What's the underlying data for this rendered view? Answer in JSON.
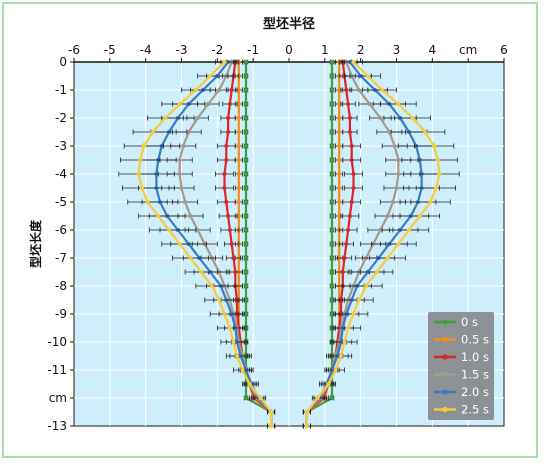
{
  "chart_data": {
    "type": "line",
    "title": "型坯半径",
    "xlabel": "cm",
    "ylabel": "型坯长度",
    "xlim": [
      -6,
      6
    ],
    "ylim": [
      -13,
      0
    ],
    "x_ticks": [
      "-6",
      "-5",
      "-4",
      "-3",
      "-2",
      "-1",
      "0",
      "1",
      "2",
      "3",
      "4",
      "cm",
      "6"
    ],
    "y_ticks": [
      "0",
      "-1",
      "-2",
      "-3",
      "-4",
      "-5",
      "-6",
      "-7",
      "-8",
      "-9",
      "-10",
      "-11",
      "cm",
      "-13"
    ],
    "y": [
      0,
      -0.5,
      -1,
      -1.5,
      -2,
      -2.5,
      -3,
      -3.5,
      -4,
      -4.5,
      -5,
      -5.5,
      -6,
      -6.5,
      -7,
      -7.5,
      -8,
      -8.5,
      -9,
      -9.5,
      -10,
      -10.5,
      -11,
      -11.5,
      -12,
      -12.5,
      -13
    ],
    "grid": true,
    "legend_position": "bottom-right",
    "colors": {
      "plot_background": "#cdeefa",
      "legend_background": "#8c9196",
      "border": "#a9dfae"
    },
    "series": [
      {
        "name": "0 s",
        "color": "#3f9f3f",
        "right": [
          1.2,
          1.2,
          1.2,
          1.2,
          1.2,
          1.2,
          1.2,
          1.2,
          1.2,
          1.2,
          1.2,
          1.2,
          1.2,
          1.2,
          1.2,
          1.2,
          1.2,
          1.2,
          1.2,
          1.2,
          1.2,
          1.2,
          1.2,
          1.2,
          1.2,
          0.5,
          0.5
        ],
        "left": [
          -1.2,
          -1.2,
          -1.2,
          -1.2,
          -1.2,
          -1.2,
          -1.2,
          -1.2,
          -1.2,
          -1.2,
          -1.2,
          -1.2,
          -1.2,
          -1.2,
          -1.2,
          -1.2,
          -1.2,
          -1.2,
          -1.2,
          -1.2,
          -1.2,
          -1.2,
          -1.2,
          -1.2,
          -1.2,
          -0.5,
          -0.5
        ],
        "err": [
          0.05,
          0.05,
          0.05,
          0.05,
          0.05,
          0.05,
          0.05,
          0.05,
          0.05,
          0.05,
          0.05,
          0.05,
          0.05,
          0.05,
          0.05,
          0.05,
          0.05,
          0.05,
          0.05,
          0.05,
          0.05,
          0.05,
          0.05,
          0.05,
          0.05,
          0.1,
          0.1
        ]
      },
      {
        "name": "0.5 s",
        "color": "#f28c1e",
        "right": [
          1.4,
          1.4,
          1.4,
          1.4,
          1.4,
          1.4,
          1.4,
          1.4,
          1.4,
          1.4,
          1.4,
          1.4,
          1.4,
          1.4,
          1.4,
          1.4,
          1.4,
          1.4,
          1.4,
          1.4,
          1.35,
          1.3,
          1.2,
          1.1,
          1.0,
          0.5,
          0.5
        ],
        "left": [
          -1.4,
          -1.4,
          -1.4,
          -1.4,
          -1.4,
          -1.4,
          -1.4,
          -1.4,
          -1.4,
          -1.4,
          -1.4,
          -1.4,
          -1.4,
          -1.4,
          -1.4,
          -1.4,
          -1.4,
          -1.4,
          -1.4,
          -1.4,
          -1.35,
          -1.3,
          -1.2,
          -1.1,
          -1.0,
          -0.5,
          -0.5
        ],
        "err": [
          0.1,
          0.1,
          0.1,
          0.1,
          0.1,
          0.1,
          0.1,
          0.1,
          0.1,
          0.1,
          0.1,
          0.1,
          0.1,
          0.1,
          0.1,
          0.1,
          0.1,
          0.1,
          0.1,
          0.1,
          0.1,
          0.1,
          0.1,
          0.1,
          0.1,
          0.1,
          0.1
        ]
      },
      {
        "name": "1.0 s",
        "color": "#d9262b",
        "right": [
          1.5,
          1.55,
          1.6,
          1.65,
          1.7,
          1.7,
          1.75,
          1.75,
          1.8,
          1.8,
          1.75,
          1.7,
          1.65,
          1.6,
          1.55,
          1.5,
          1.5,
          1.45,
          1.45,
          1.4,
          1.35,
          1.3,
          1.2,
          1.1,
          0.95,
          0.5,
          0.5
        ],
        "left": [
          -1.5,
          -1.55,
          -1.6,
          -1.65,
          -1.7,
          -1.7,
          -1.75,
          -1.75,
          -1.8,
          -1.8,
          -1.75,
          -1.7,
          -1.65,
          -1.6,
          -1.55,
          -1.5,
          -1.5,
          -1.45,
          -1.45,
          -1.4,
          -1.35,
          -1.3,
          -1.2,
          -1.1,
          -0.95,
          -0.5,
          -0.5
        ],
        "err": [
          0.1,
          0.15,
          0.15,
          0.2,
          0.2,
          0.2,
          0.25,
          0.25,
          0.25,
          0.25,
          0.25,
          0.25,
          0.25,
          0.2,
          0.2,
          0.2,
          0.2,
          0.2,
          0.2,
          0.15,
          0.15,
          0.15,
          0.15,
          0.1,
          0.1,
          0.1,
          0.1
        ]
      },
      {
        "name": "1.5 s",
        "color": "#a39a8c",
        "right": [
          1.6,
          1.75,
          1.95,
          2.25,
          2.55,
          2.8,
          2.95,
          3.05,
          3.05,
          3.0,
          2.9,
          2.75,
          2.55,
          2.35,
          2.15,
          1.95,
          1.8,
          1.65,
          1.55,
          1.45,
          1.4,
          1.3,
          1.2,
          1.1,
          0.9,
          0.5,
          0.5
        ],
        "left": [
          -1.6,
          -1.75,
          -1.95,
          -2.25,
          -2.55,
          -2.8,
          -2.95,
          -3.05,
          -3.05,
          -3.0,
          -2.9,
          -2.75,
          -2.55,
          -2.35,
          -2.15,
          -1.95,
          -1.8,
          -1.65,
          -1.55,
          -1.45,
          -1.4,
          -1.3,
          -1.2,
          -1.1,
          -0.9,
          -0.5,
          -0.5
        ],
        "err": [
          0.15,
          0.2,
          0.25,
          0.3,
          0.3,
          0.35,
          0.35,
          0.35,
          0.35,
          0.35,
          0.35,
          0.35,
          0.35,
          0.35,
          0.3,
          0.3,
          0.3,
          0.25,
          0.25,
          0.2,
          0.2,
          0.2,
          0.15,
          0.15,
          0.1,
          0.1,
          0.1
        ]
      },
      {
        "name": "2.0 s",
        "color": "#3a7ac2",
        "right": [
          1.7,
          2.0,
          2.4,
          2.8,
          3.1,
          3.35,
          3.55,
          3.65,
          3.7,
          3.7,
          3.6,
          3.4,
          3.1,
          2.8,
          2.5,
          2.2,
          1.9,
          1.75,
          1.6,
          1.5,
          1.45,
          1.35,
          1.2,
          1.05,
          0.85,
          0.5,
          0.5
        ],
        "left": [
          -1.7,
          -2.0,
          -2.4,
          -2.8,
          -3.1,
          -3.35,
          -3.55,
          -3.65,
          -3.7,
          -3.7,
          -3.6,
          -3.4,
          -3.1,
          -2.8,
          -2.5,
          -2.2,
          -1.9,
          -1.75,
          -1.6,
          -1.5,
          -1.45,
          -1.35,
          -1.2,
          -1.05,
          -0.85,
          -0.5,
          -0.5
        ],
        "err": [
          0.2,
          0.3,
          0.35,
          0.45,
          0.45,
          0.5,
          0.5,
          0.5,
          0.5,
          0.5,
          0.5,
          0.5,
          0.5,
          0.5,
          0.45,
          0.45,
          0.4,
          0.35,
          0.35,
          0.3,
          0.3,
          0.3,
          0.2,
          0.2,
          0.15,
          0.1,
          0.1
        ]
      },
      {
        "name": "2.5 s",
        "color": "#f5cc3d",
        "right": [
          1.8,
          2.2,
          2.6,
          3.05,
          3.45,
          3.8,
          4.05,
          4.15,
          4.2,
          4.1,
          3.95,
          3.65,
          3.35,
          3.05,
          2.75,
          2.45,
          2.15,
          1.95,
          1.8,
          1.65,
          1.55,
          1.45,
          1.3,
          1.1,
          0.8,
          0.5,
          0.5
        ],
        "left": [
          -1.8,
          -2.2,
          -2.6,
          -3.05,
          -3.45,
          -3.8,
          -4.05,
          -4.15,
          -4.2,
          -4.1,
          -3.95,
          -3.65,
          -3.35,
          -3.05,
          -2.75,
          -2.45,
          -2.15,
          -1.95,
          -1.8,
          -1.65,
          -1.55,
          -1.45,
          -1.3,
          -1.1,
          -0.8,
          -0.5,
          -0.5
        ],
        "err": [
          0.25,
          0.35,
          0.4,
          0.5,
          0.5,
          0.55,
          0.55,
          0.55,
          0.55,
          0.55,
          0.55,
          0.55,
          0.55,
          0.5,
          0.5,
          0.45,
          0.45,
          0.4,
          0.4,
          0.35,
          0.35,
          0.3,
          0.25,
          0.2,
          0.15,
          0.1,
          0.1
        ]
      }
    ]
  }
}
